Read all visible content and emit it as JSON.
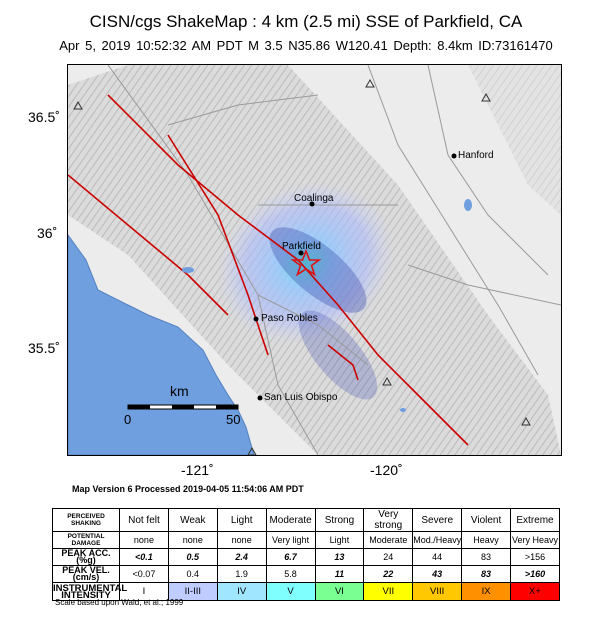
{
  "title": "CISN/cgs ShakeMap : 4 km (2.5 mi) SSE of Parkfield, CA",
  "subtitle": "Apr  5, 2019 10:52:32 AM PDT   M 3.5   N35.86 W120.41   Depth: 8.4km   ID:73161470",
  "map": {
    "lat_labels": [
      "36.5˚",
      "36˚",
      "35.5˚"
    ],
    "lon_labels": [
      "-121˚",
      "-120˚"
    ],
    "cities": [
      "Hanford",
      "Coalinga",
      "Parkfield",
      "Paso Robles",
      "San Luis Obispo"
    ],
    "scale_bar": {
      "unit": "km",
      "start": "0",
      "end": "50"
    },
    "colors": {
      "ocean": "#6f9fdf",
      "land": "#e6e6e6",
      "fault": "#cc0000",
      "epicenter": "#e01010"
    }
  },
  "processed": "Map Version 6 Processed 2019-04-05 11:54:06 AM PDT",
  "legend": {
    "row_headers": {
      "shaking": "PERCEIVED SHAKING",
      "damage": "POTENTIAL DAMAGE",
      "acc": "PEAK ACC.(%g)",
      "vel": "PEAK VEL.(cm/s)",
      "intensity": "INSTRUMENTAL INTENSITY"
    },
    "shaking": [
      "Not felt",
      "Weak",
      "Light",
      "Moderate",
      "Strong",
      "Very strong",
      "Severe",
      "Violent",
      "Extreme"
    ],
    "damage": [
      "none",
      "none",
      "none",
      "Very light",
      "Light",
      "Moderate",
      "Mod./Heavy",
      "Heavy",
      "Very Heavy"
    ],
    "acc": [
      "<0.1",
      "0.5",
      "2.4",
      "6.7",
      "13",
      "24",
      "44",
      "83",
      ">156"
    ],
    "vel": [
      "<0.07",
      "0.4",
      "1.9",
      "5.8",
      "11",
      "22",
      "43",
      "83",
      ">160"
    ],
    "intensity": [
      "I",
      "II-III",
      "IV",
      "V",
      "VI",
      "VII",
      "VIII",
      "IX",
      "X+"
    ],
    "intensity_colors": [
      "#ffffff",
      "#bfccff",
      "#a0e6ff",
      "#80ffff",
      "#7aff93",
      "#ffff00",
      "#ffc800",
      "#ff9100",
      "#ff0000"
    ],
    "scale_note": "Scale based upon Wald, et al.; 1999"
  }
}
